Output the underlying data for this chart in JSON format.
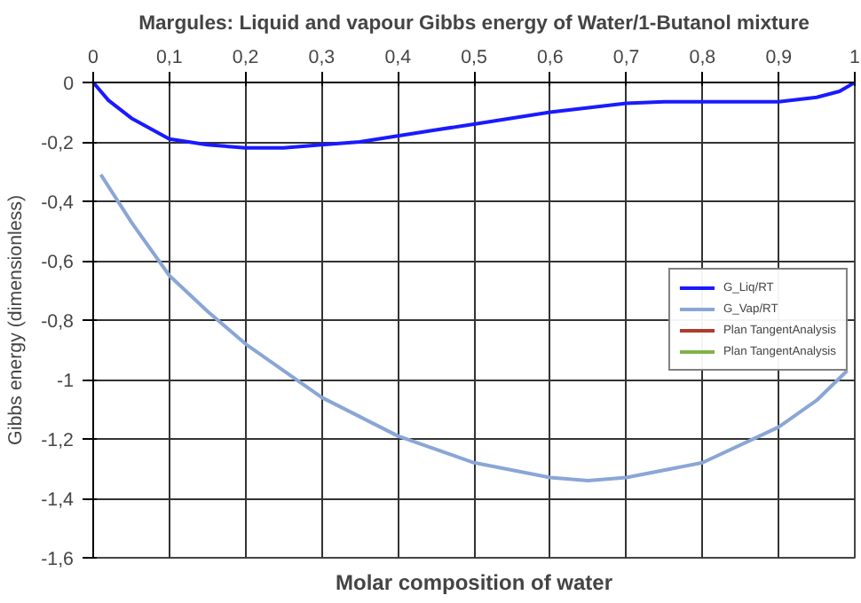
{
  "chart_data": {
    "type": "line",
    "title": "Margules: Liquid and vapour Gibbs energy of Water/1-Butanol mixture",
    "xlabel": "Molar composition of water",
    "ylabel": "Gibbs energy (dimensionless)",
    "series": [
      {
        "name": "G_Liq/RT",
        "color": "#1a1aff",
        "x": [
          0,
          0.02,
          0.05,
          0.1,
          0.15,
          0.2,
          0.25,
          0.3,
          0.35,
          0.4,
          0.45,
          0.5,
          0.55,
          0.6,
          0.65,
          0.7,
          0.75,
          0.8,
          0.85,
          0.9,
          0.95,
          0.98,
          1
        ],
        "values": [
          0,
          -0.06,
          -0.12,
          -0.19,
          -0.21,
          -0.22,
          -0.22,
          -0.21,
          -0.2,
          -0.18,
          -0.16,
          -0.14,
          -0.12,
          -0.1,
          -0.085,
          -0.07,
          -0.065,
          -0.065,
          -0.065,
          -0.065,
          -0.05,
          -0.03,
          0
        ]
      },
      {
        "name": "G_Vap/RT",
        "color": "#8aa6d6",
        "x": [
          0.01,
          0.05,
          0.1,
          0.15,
          0.2,
          0.3,
          0.4,
          0.5,
          0.6,
          0.65,
          0.7,
          0.8,
          0.9,
          0.95,
          0.99
        ],
        "values": [
          -0.31,
          -0.47,
          -0.65,
          -0.77,
          -0.88,
          -1.06,
          -1.19,
          -1.28,
          -1.33,
          -1.34,
          -1.33,
          -1.28,
          -1.16,
          -1.07,
          -0.97
        ]
      },
      {
        "name": "Plan TangentAnalysis",
        "color": "#b03a2e"
      },
      {
        "name": "Plan TangentAnalysis",
        "color": "#7fb24a"
      }
    ],
    "xlim": [
      0,
      1
    ],
    "xticks": [
      {
        "value": 0,
        "label": "0"
      },
      {
        "value": 0.1,
        "label": "0,1"
      },
      {
        "value": 0.2,
        "label": "0,2"
      },
      {
        "value": 0.3,
        "label": "0,3"
      },
      {
        "value": 0.4,
        "label": "0,4"
      },
      {
        "value": 0.5,
        "label": "0,5"
      },
      {
        "value": 0.6,
        "label": "0,6"
      },
      {
        "value": 0.7,
        "label": "0,7"
      },
      {
        "value": 0.8,
        "label": "0,8"
      },
      {
        "value": 0.9,
        "label": "0,9"
      },
      {
        "value": 1,
        "label": "1"
      }
    ],
    "ylim": [
      -1.6,
      0
    ],
    "yticks": [
      {
        "value": 0,
        "label": "0"
      },
      {
        "value": -0.2,
        "label": "-0,2"
      },
      {
        "value": -0.4,
        "label": "-0,4"
      },
      {
        "value": -0.6,
        "label": "-0,6"
      },
      {
        "value": -0.8,
        "label": "-0,8"
      },
      {
        "value": -1,
        "label": "-1"
      },
      {
        "value": -1.2,
        "label": "-1,2"
      },
      {
        "value": -1.4,
        "label": "-1,4"
      },
      {
        "value": -1.6,
        "label": "-1,6"
      }
    ],
    "grid": true,
    "legend": "right"
  }
}
